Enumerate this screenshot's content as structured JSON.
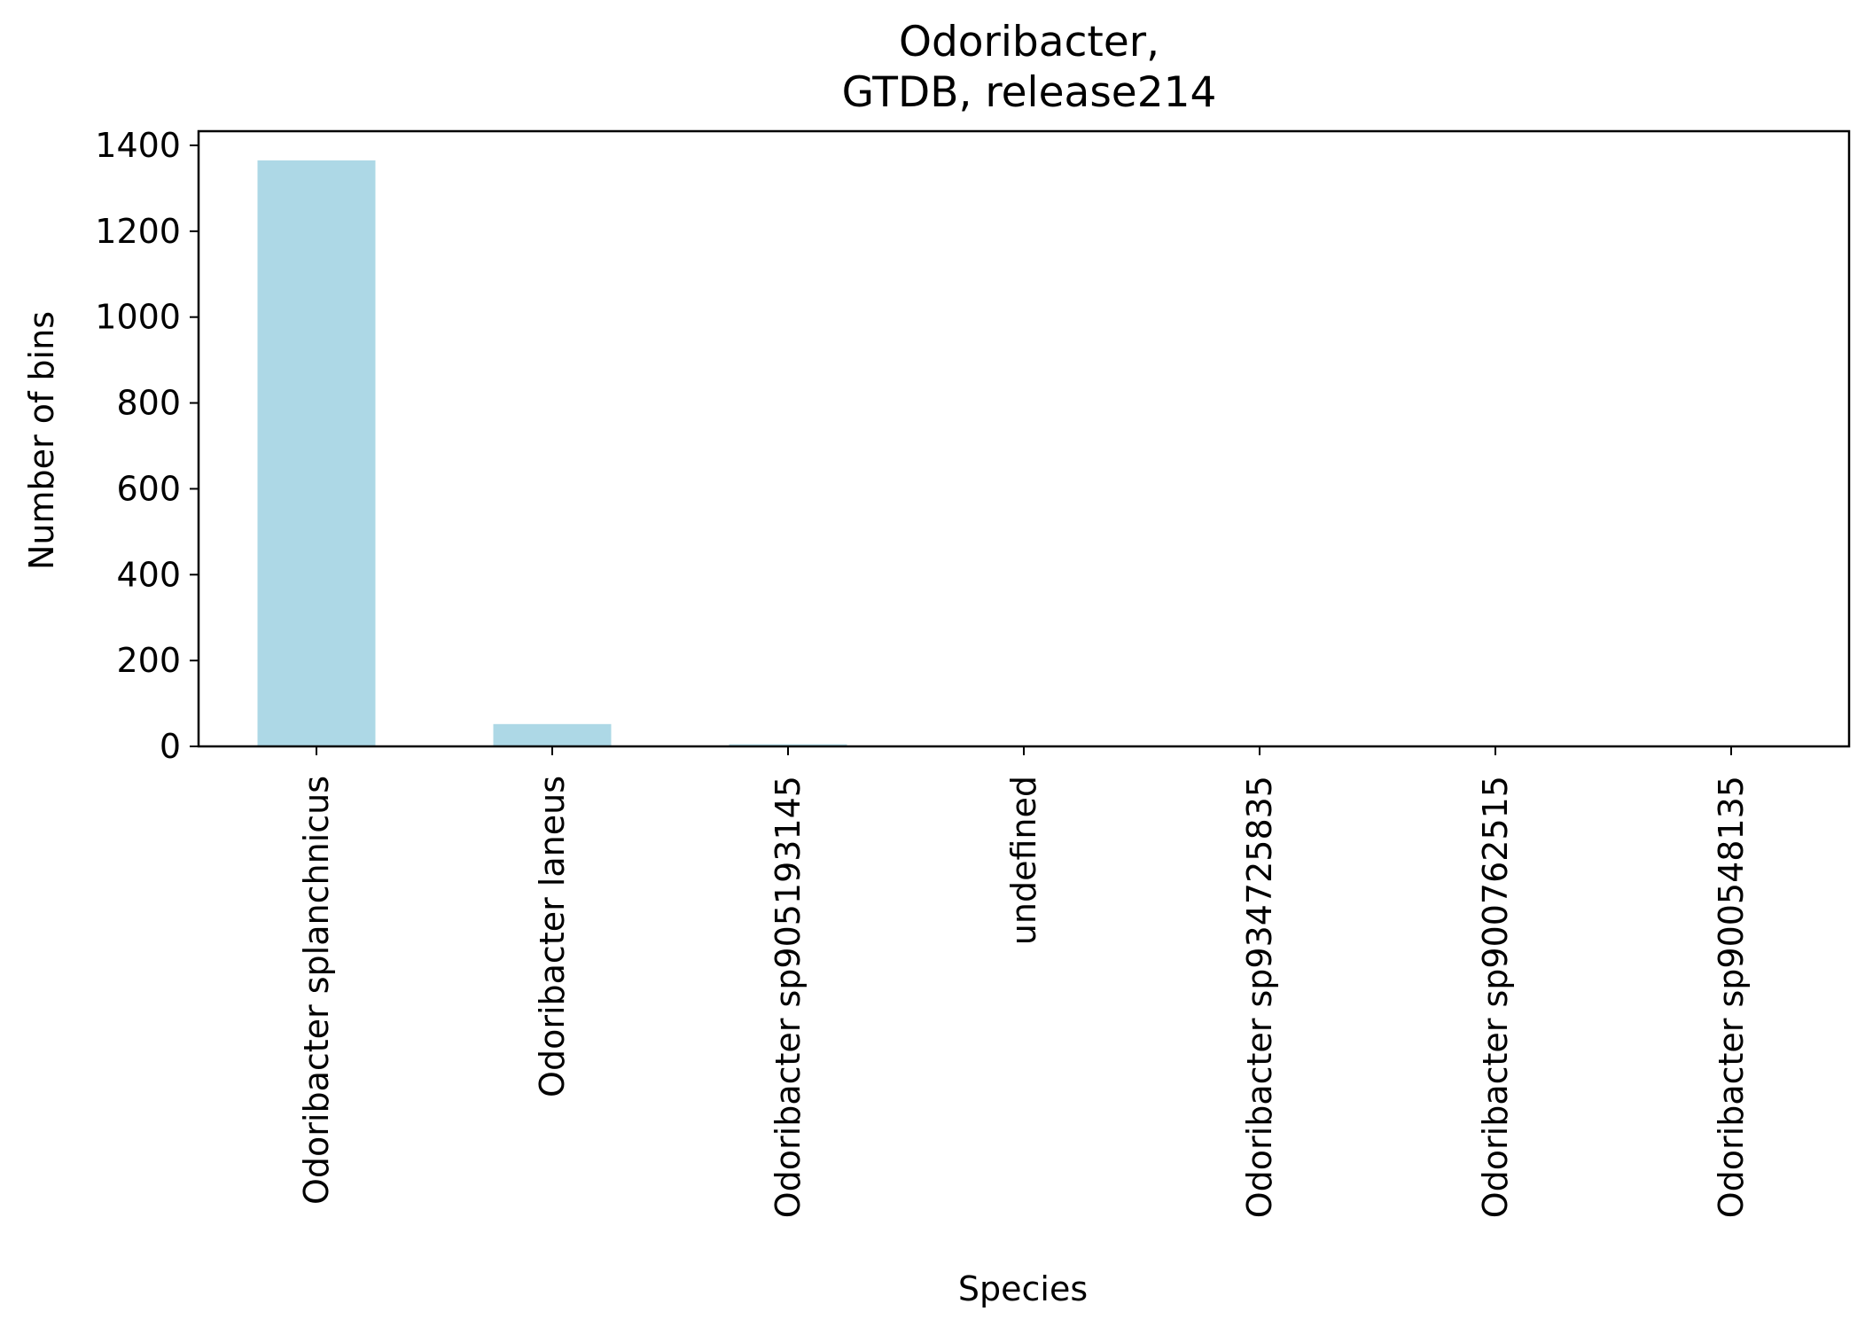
{
  "chart_data": {
    "type": "bar",
    "title": [
      "Odoribacter,",
      "GTDB, release214"
    ],
    "xlabel": "Species",
    "ylabel": "Number of bins",
    "categories": [
      "Odoribacter splanchnicus",
      "Odoribacter laneus",
      "Odoribacter sp905193145",
      "undefined",
      "Odoribacter sp934725835",
      "Odoribacter sp900762515",
      "Odoribacter sp900548135"
    ],
    "values": [
      1365,
      52,
      5,
      1,
      1,
      1,
      1
    ],
    "ylim": [
      0,
      1433
    ],
    "yticks": [
      0,
      200,
      400,
      600,
      800,
      1000,
      1200,
      1400
    ],
    "grid": false,
    "legend": "none",
    "bar_color": "#add8e6",
    "axis_color": "#000000"
  }
}
